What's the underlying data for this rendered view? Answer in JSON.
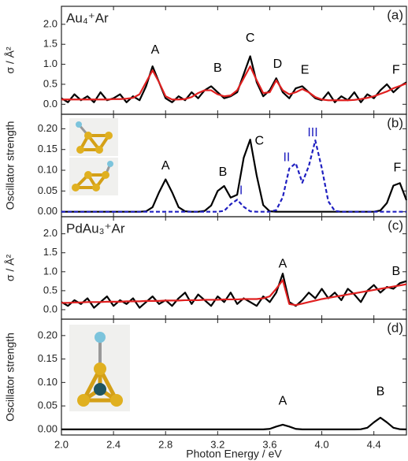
{
  "chart_data": [
    {
      "type": "line",
      "title": "Au₄⁺Ar",
      "panel_label": "(a)",
      "ylabel": "σ / Å²",
      "x": [
        2,
        2.05,
        2.1,
        2.15,
        2.2,
        2.25,
        2.3,
        2.35,
        2.4,
        2.45,
        2.5,
        2.55,
        2.6,
        2.65,
        2.7,
        2.75,
        2.8,
        2.85,
        2.9,
        2.95,
        3,
        3.05,
        3.1,
        3.15,
        3.2,
        3.25,
        3.3,
        3.35,
        3.4,
        3.45,
        3.5,
        3.55,
        3.6,
        3.65,
        3.7,
        3.75,
        3.8,
        3.85,
        3.9,
        3.95,
        4,
        4.05,
        4.1,
        4.15,
        4.2,
        4.25,
        4.3,
        4.35,
        4.4,
        4.45,
        4.5,
        4.55,
        4.6,
        4.65
      ],
      "series": [
        {
          "color": "#000000",
          "values": [
            0.15,
            0.05,
            0.25,
            0.1,
            0.2,
            0.05,
            0.3,
            0.1,
            0.15,
            0.25,
            0.05,
            0.2,
            0.1,
            0.45,
            0.95,
            0.55,
            0.15,
            0.05,
            0.2,
            0.1,
            0.3,
            0.15,
            0.35,
            0.45,
            0.3,
            0.15,
            0.2,
            0.3,
            0.75,
            1.2,
            0.55,
            0.2,
            0.35,
            0.65,
            0.3,
            0.15,
            0.4,
            0.45,
            0.3,
            0.15,
            0.1,
            0.3,
            0.05,
            0.2,
            0.1,
            0.3,
            0.05,
            0.25,
            0.15,
            0.35,
            0.5,
            0.3,
            0.45,
            0.55
          ]
        },
        {
          "color": "#e02020",
          "values": [
            0.12,
            0.12,
            0.12,
            0.12,
            0.12,
            0.12,
            0.12,
            0.12,
            0.13,
            0.13,
            0.14,
            0.16,
            0.25,
            0.55,
            0.85,
            0.55,
            0.2,
            0.12,
            0.12,
            0.13,
            0.18,
            0.28,
            0.35,
            0.35,
            0.25,
            0.2,
            0.22,
            0.35,
            0.65,
            0.95,
            0.6,
            0.28,
            0.3,
            0.6,
            0.35,
            0.25,
            0.3,
            0.38,
            0.3,
            0.18,
            0.12,
            0.1,
            0.1,
            0.1,
            0.1,
            0.11,
            0.13,
            0.16,
            0.2,
            0.26,
            0.32,
            0.4,
            0.46,
            0.52
          ]
        }
      ],
      "xlim": [
        2,
        4.65
      ],
      "ylim": [
        -0.25,
        2.45
      ],
      "yticks": [
        {
          "value": 0,
          "label": "0.0"
        },
        0.5,
        {
          "value": 1,
          "label": "1.0"
        },
        1.5,
        {
          "value": 2,
          "label": "2.0"
        }
      ],
      "annotations": [
        {
          "text": "A",
          "color": "#000000"
        },
        {
          "text": "B",
          "color": "#000000"
        },
        {
          "text": "C",
          "color": "#000000"
        },
        {
          "text": "D",
          "color": "#000000"
        },
        {
          "text": "E",
          "color": "#000000"
        },
        {
          "text": "F",
          "color": "#000000"
        }
      ]
    },
    {
      "type": "line",
      "panel_label": "(b)",
      "ylabel": "Oscillator strength",
      "x": [
        2,
        2.05,
        2.1,
        2.15,
        2.2,
        2.25,
        2.3,
        2.35,
        2.4,
        2.45,
        2.5,
        2.55,
        2.6,
        2.65,
        2.7,
        2.75,
        2.8,
        2.85,
        2.9,
        2.95,
        3,
        3.05,
        3.1,
        3.15,
        3.2,
        3.25,
        3.3,
        3.35,
        3.4,
        3.45,
        3.5,
        3.55,
        3.6,
        3.65,
        3.7,
        3.75,
        3.8,
        3.85,
        3.9,
        3.95,
        4,
        4.05,
        4.1,
        4.15,
        4.2,
        4.25,
        4.3,
        4.35,
        4.4,
        4.45,
        4.5,
        4.55,
        4.6,
        4.65
      ],
      "series": [
        {
          "color": "#000000",
          "values": [
            0,
            0,
            0,
            0,
            0,
            0,
            0,
            0,
            0,
            0,
            0,
            0,
            0,
            0.001,
            0.011,
            0.047,
            0.078,
            0.047,
            0.011,
            0.001,
            0,
            0,
            0.002,
            0.015,
            0.05,
            0.062,
            0.034,
            0.041,
            0.13,
            0.174,
            0.087,
            0.016,
            0.001,
            0,
            0,
            0,
            0,
            0,
            0,
            0,
            0,
            0,
            0,
            0,
            0,
            0,
            0,
            0,
            0,
            0.003,
            0.021,
            0.063,
            0.069,
            0.028
          ]
        },
        {
          "color": "#1f1fc0",
          "dashed": true,
          "values": [
            0,
            0,
            0,
            0,
            0,
            0,
            0,
            0,
            0,
            0,
            0,
            0,
            0,
            0,
            0,
            0,
            0,
            0,
            0,
            0,
            0,
            0,
            0,
            0,
            0,
            0.002,
            0.018,
            0.029,
            0.012,
            0.001,
            0,
            0,
            0,
            0.004,
            0.035,
            0.104,
            0.117,
            0.07,
            0.11,
            0.172,
            0.105,
            0.025,
            0.002,
            0,
            0,
            0,
            0,
            0,
            0,
            0,
            0,
            0,
            0,
            0
          ]
        }
      ],
      "xlim": [
        2,
        4.65
      ],
      "ylim": [
        -0.012,
        0.235
      ],
      "yticks": [
        {
          "value": 0,
          "label": "0.00"
        },
        0.05,
        {
          "value": 0.1,
          "label": "0.10"
        },
        0.15,
        {
          "value": 0.2,
          "label": "0.20"
        }
      ],
      "annotations": [
        {
          "text": "A",
          "color": "#000000"
        },
        {
          "text": "B",
          "color": "#000000"
        },
        {
          "text": "C",
          "color": "#000000"
        },
        {
          "text": "F",
          "color": "#000000"
        },
        {
          "text": "I",
          "color": "#1f1fc0"
        },
        {
          "text": "II",
          "color": "#1f1fc0"
        },
        {
          "text": "III",
          "color": "#1f1fc0"
        }
      ]
    },
    {
      "type": "line",
      "title": "PdAu₃⁺Ar",
      "panel_label": "(c)",
      "ylabel": "σ / Å²",
      "x": [
        2,
        2.05,
        2.1,
        2.15,
        2.2,
        2.25,
        2.3,
        2.35,
        2.4,
        2.45,
        2.5,
        2.55,
        2.6,
        2.65,
        2.7,
        2.75,
        2.8,
        2.85,
        2.9,
        2.95,
        3,
        3.05,
        3.1,
        3.15,
        3.2,
        3.25,
        3.3,
        3.35,
        3.4,
        3.45,
        3.5,
        3.55,
        3.6,
        3.65,
        3.7,
        3.75,
        3.8,
        3.85,
        3.9,
        3.95,
        4,
        4.05,
        4.1,
        4.15,
        4.2,
        4.25,
        4.3,
        4.35,
        4.4,
        4.45,
        4.5,
        4.55,
        4.6,
        4.65
      ],
      "series": [
        {
          "color": "#000000",
          "values": [
            0.2,
            0.1,
            0.25,
            0.15,
            0.3,
            0.05,
            0.2,
            0.35,
            0.1,
            0.25,
            0.15,
            0.3,
            0.05,
            0.2,
            0.35,
            0.15,
            0.25,
            0.1,
            0.3,
            0.45,
            0.15,
            0.4,
            0.25,
            0.1,
            0.35,
            0.2,
            0.45,
            0.15,
            0.3,
            0.2,
            0.1,
            0.35,
            0.2,
            0.45,
            0.95,
            0.2,
            0.1,
            0.25,
            0.45,
            0.3,
            0.55,
            0.3,
            0.45,
            0.25,
            0.55,
            0.4,
            0.2,
            0.5,
            0.65,
            0.45,
            0.6,
            0.55,
            0.7,
            0.75
          ]
        },
        {
          "color": "#e02020",
          "values": [
            0.18,
            0.18,
            0.19,
            0.19,
            0.2,
            0.2,
            0.2,
            0.21,
            0.21,
            0.21,
            0.22,
            0.22,
            0.22,
            0.23,
            0.23,
            0.23,
            0.24,
            0.24,
            0.24,
            0.25,
            0.25,
            0.25,
            0.26,
            0.26,
            0.26,
            0.27,
            0.27,
            0.27,
            0.28,
            0.28,
            0.28,
            0.3,
            0.35,
            0.55,
            0.78,
            0.15,
            0.12,
            0.16,
            0.2,
            0.24,
            0.28,
            0.31,
            0.34,
            0.37,
            0.4,
            0.43,
            0.46,
            0.49,
            0.52,
            0.55,
            0.58,
            0.61,
            0.64,
            0.67
          ]
        }
      ],
      "xlim": [
        2,
        4.65
      ],
      "ylim": [
        -0.25,
        2.45
      ],
      "yticks": [
        {
          "value": 0,
          "label": "0.0"
        },
        0.5,
        {
          "value": 1,
          "label": "1.0"
        },
        1.5,
        {
          "value": 2,
          "label": "2.0"
        }
      ],
      "annotations": [
        {
          "text": "A",
          "color": "#000000"
        },
        {
          "text": "B",
          "color": "#000000"
        }
      ]
    },
    {
      "type": "line",
      "panel_label": "(d)",
      "ylabel": "Oscillator strength",
      "xlabel": "Photon Energy / eV",
      "x": [
        2,
        2.05,
        2.1,
        2.15,
        2.2,
        2.25,
        2.3,
        2.35,
        2.4,
        2.45,
        2.5,
        2.55,
        2.6,
        2.65,
        2.7,
        2.75,
        2.8,
        2.85,
        2.9,
        2.95,
        3,
        3.05,
        3.1,
        3.15,
        3.2,
        3.25,
        3.3,
        3.35,
        3.4,
        3.45,
        3.5,
        3.55,
        3.6,
        3.65,
        3.7,
        3.75,
        3.8,
        3.85,
        3.9,
        3.95,
        4,
        4.05,
        4.1,
        4.15,
        4.2,
        4.25,
        4.3,
        4.35,
        4.4,
        4.45,
        4.5,
        4.55,
        4.6,
        4.65
      ],
      "series": [
        {
          "color": "#000000",
          "values": [
            0,
            0,
            0,
            0,
            0,
            0,
            0,
            0,
            0,
            0,
            0,
            0,
            0,
            0,
            0,
            0,
            0,
            0,
            0,
            0,
            0,
            0,
            0,
            0,
            0,
            0,
            0,
            0,
            0,
            0,
            0,
            0,
            0.001,
            0.006,
            0.01,
            0.006,
            0.001,
            0,
            0,
            0,
            0,
            0,
            0,
            0,
            0,
            0,
            0.0003,
            0.0034,
            0.015,
            0.025,
            0.015,
            0.0034,
            0.0003,
            0
          ]
        }
      ],
      "xlim": [
        2,
        4.65
      ],
      "ylim": [
        -0.012,
        0.235
      ],
      "xticks": [
        {
          "value": 2,
          "label": "2.0"
        },
        2.4,
        2.8,
        3.2,
        3.6,
        {
          "value": 4,
          "label": "4.0"
        },
        4.4
      ],
      "yticks": [
        {
          "value": 0,
          "label": "0.00"
        },
        0.05,
        {
          "value": 0.1,
          "label": "0.10"
        },
        0.15,
        {
          "value": 0.2,
          "label": "0.20"
        }
      ],
      "annotations": [
        {
          "text": "A",
          "color": "#000000"
        },
        {
          "text": "B",
          "color": "#000000"
        }
      ]
    }
  ]
}
